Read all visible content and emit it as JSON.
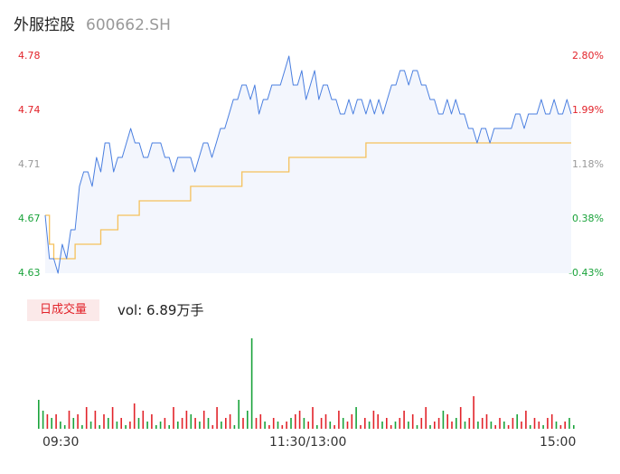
{
  "header": {
    "name": "外服控股",
    "code": "600662.SH"
  },
  "price_axis": {
    "left": [
      {
        "label": "4.78",
        "value": 4.78,
        "color": "#e2232a"
      },
      {
        "label": "4.74",
        "value": 4.74,
        "color": "#e2232a"
      },
      {
        "label": "4.71",
        "value": 4.71,
        "color": "#999999"
      },
      {
        "label": "4.67",
        "value": 4.67,
        "color": "#1aa33b"
      },
      {
        "label": "4.63",
        "value": 4.63,
        "color": "#1aa33b"
      }
    ],
    "right": [
      {
        "label": "2.80%",
        "color": "#e2232a"
      },
      {
        "label": "1.99%",
        "color": "#e2232a"
      },
      {
        "label": "1.18%",
        "color": "#999999"
      },
      {
        "label": "0.38%",
        "color": "#1aa33b"
      },
      {
        "label": "-0.43%",
        "color": "#1aa33b"
      }
    ]
  },
  "volume": {
    "tag": "日成交量",
    "text": "vol: 6.89万手"
  },
  "time_axis": [
    "09:30",
    "11:30/13:00",
    "15:00"
  ],
  "colors": {
    "price_line": "#4a7fe0",
    "avg_line": "#f5c15c",
    "area_fill": "#f3f6fd",
    "up": "#e2232a",
    "down": "#1aa33b"
  },
  "chart_data": {
    "type": "line",
    "ylim": [
      4.63,
      4.78
    ],
    "xlabels": [
      "09:30",
      "11:30/13:00",
      "15:00"
    ],
    "series": [
      {
        "values": [
          4.67,
          4.64,
          4.64,
          4.63,
          4.65,
          4.64,
          4.66,
          4.66,
          4.69,
          4.7,
          4.7,
          4.69,
          4.71,
          4.7,
          4.72,
          4.72,
          4.7,
          4.71,
          4.71,
          4.72,
          4.73,
          4.72,
          4.72,
          4.71,
          4.71,
          4.72,
          4.72,
          4.72,
          4.71,
          4.71,
          4.7,
          4.71,
          4.71,
          4.71,
          4.71,
          4.7,
          4.71,
          4.72,
          4.72,
          4.71,
          4.72,
          4.73,
          4.73,
          4.74,
          4.75,
          4.75,
          4.76,
          4.76,
          4.75,
          4.76,
          4.74,
          4.75,
          4.75,
          4.76,
          4.76,
          4.76,
          4.77,
          4.78,
          4.76,
          4.76,
          4.77,
          4.75,
          4.76,
          4.77,
          4.75,
          4.76,
          4.76,
          4.75,
          4.75,
          4.74,
          4.74,
          4.75,
          4.74,
          4.75,
          4.75,
          4.74,
          4.75,
          4.74,
          4.75,
          4.74,
          4.75,
          4.76,
          4.76,
          4.77,
          4.77,
          4.76,
          4.77,
          4.77,
          4.76,
          4.76,
          4.75,
          4.75,
          4.74,
          4.74,
          4.75,
          4.74,
          4.75,
          4.74,
          4.74,
          4.73,
          4.73,
          4.72,
          4.73,
          4.73,
          4.72,
          4.73,
          4.73,
          4.73,
          4.73,
          4.73,
          4.74,
          4.74,
          4.73,
          4.74,
          4.74,
          4.74,
          4.75,
          4.74,
          4.74,
          4.75,
          4.74,
          4.74,
          4.75,
          4.74
        ]
      },
      {
        "values": [
          4.67,
          4.65,
          4.64,
          4.64,
          4.64,
          4.64,
          4.64,
          4.65,
          4.65,
          4.65,
          4.65,
          4.65,
          4.65,
          4.66,
          4.66,
          4.66,
          4.66,
          4.67,
          4.67,
          4.67,
          4.67,
          4.67,
          4.68,
          4.68,
          4.68,
          4.68,
          4.68,
          4.68,
          4.68,
          4.68,
          4.68,
          4.68,
          4.68,
          4.68,
          4.69,
          4.69,
          4.69,
          4.69,
          4.69,
          4.69,
          4.69,
          4.69,
          4.69,
          4.69,
          4.69,
          4.69,
          4.7,
          4.7,
          4.7,
          4.7,
          4.7,
          4.7,
          4.7,
          4.7,
          4.7,
          4.7,
          4.7,
          4.71,
          4.71,
          4.71,
          4.71,
          4.71,
          4.71,
          4.71,
          4.71,
          4.71,
          4.71,
          4.71,
          4.71,
          4.71,
          4.71,
          4.71,
          4.71,
          4.71,
          4.71,
          4.72,
          4.72,
          4.72,
          4.72,
          4.72,
          4.72,
          4.72,
          4.72,
          4.72,
          4.72,
          4.72,
          4.72,
          4.72,
          4.72,
          4.72,
          4.72,
          4.72,
          4.72,
          4.72,
          4.72,
          4.72,
          4.72,
          4.72,
          4.72,
          4.72,
          4.72,
          4.72,
          4.72,
          4.72,
          4.72,
          4.72,
          4.72,
          4.72,
          4.72,
          4.72,
          4.72,
          4.72,
          4.72,
          4.72,
          4.72,
          4.72,
          4.72,
          4.72,
          4.72,
          4.72,
          4.72,
          4.72,
          4.72,
          4.72
        ]
      }
    ],
    "volumes": [
      8,
      5,
      4,
      3,
      4,
      2,
      1,
      5,
      3,
      4,
      1,
      6,
      2,
      5,
      1,
      4,
      3,
      6,
      2,
      3,
      1,
      2,
      7,
      3,
      5,
      2,
      4,
      1,
      2,
      3,
      1,
      6,
      2,
      3,
      5,
      4,
      3,
      2,
      5,
      3,
      1,
      6,
      2,
      3,
      4,
      1,
      8,
      3,
      5,
      25,
      3,
      4,
      2,
      1,
      3,
      2,
      1,
      2,
      3,
      4,
      5,
      3,
      2,
      6,
      1,
      3,
      4,
      2,
      1,
      5,
      3,
      2,
      4,
      6,
      1,
      3,
      2,
      5,
      4,
      2,
      3,
      1,
      2,
      3,
      5,
      2,
      4,
      1,
      3,
      6,
      1,
      2,
      3,
      5,
      4,
      2,
      3,
      6,
      2,
      3,
      9,
      2,
      3,
      4,
      2,
      1,
      3,
      2,
      1,
      3,
      4,
      2,
      5,
      1,
      3,
      2,
      1,
      3,
      4,
      2,
      1,
      2,
      3,
      1
    ],
    "volume_up": [
      0,
      0,
      1,
      0,
      1,
      0,
      0,
      1,
      0,
      1,
      0,
      1,
      0,
      1,
      0,
      1,
      0,
      1,
      0,
      1,
      0,
      1,
      1,
      0,
      1,
      0,
      1,
      0,
      0,
      1,
      0,
      1,
      0,
      1,
      1,
      0,
      1,
      0,
      1,
      0,
      1,
      1,
      0,
      1,
      1,
      0,
      0,
      1,
      0,
      0,
      1,
      1,
      0,
      1,
      1,
      0,
      1,
      1,
      0,
      1,
      1,
      0,
      1,
      1,
      0,
      1,
      1,
      0,
      1,
      1,
      0,
      1,
      1,
      0,
      1,
      1,
      0,
      1,
      1,
      0,
      1,
      1,
      0,
      1,
      1,
      0,
      1,
      0,
      1,
      1,
      0,
      1,
      1,
      0,
      1,
      1,
      0,
      1,
      0,
      1,
      1,
      0,
      1,
      1,
      0,
      1,
      1,
      0,
      1,
      1,
      0,
      1,
      1,
      0,
      1,
      1,
      0,
      1,
      1,
      0,
      1,
      1,
      0,
      0
    ]
  }
}
